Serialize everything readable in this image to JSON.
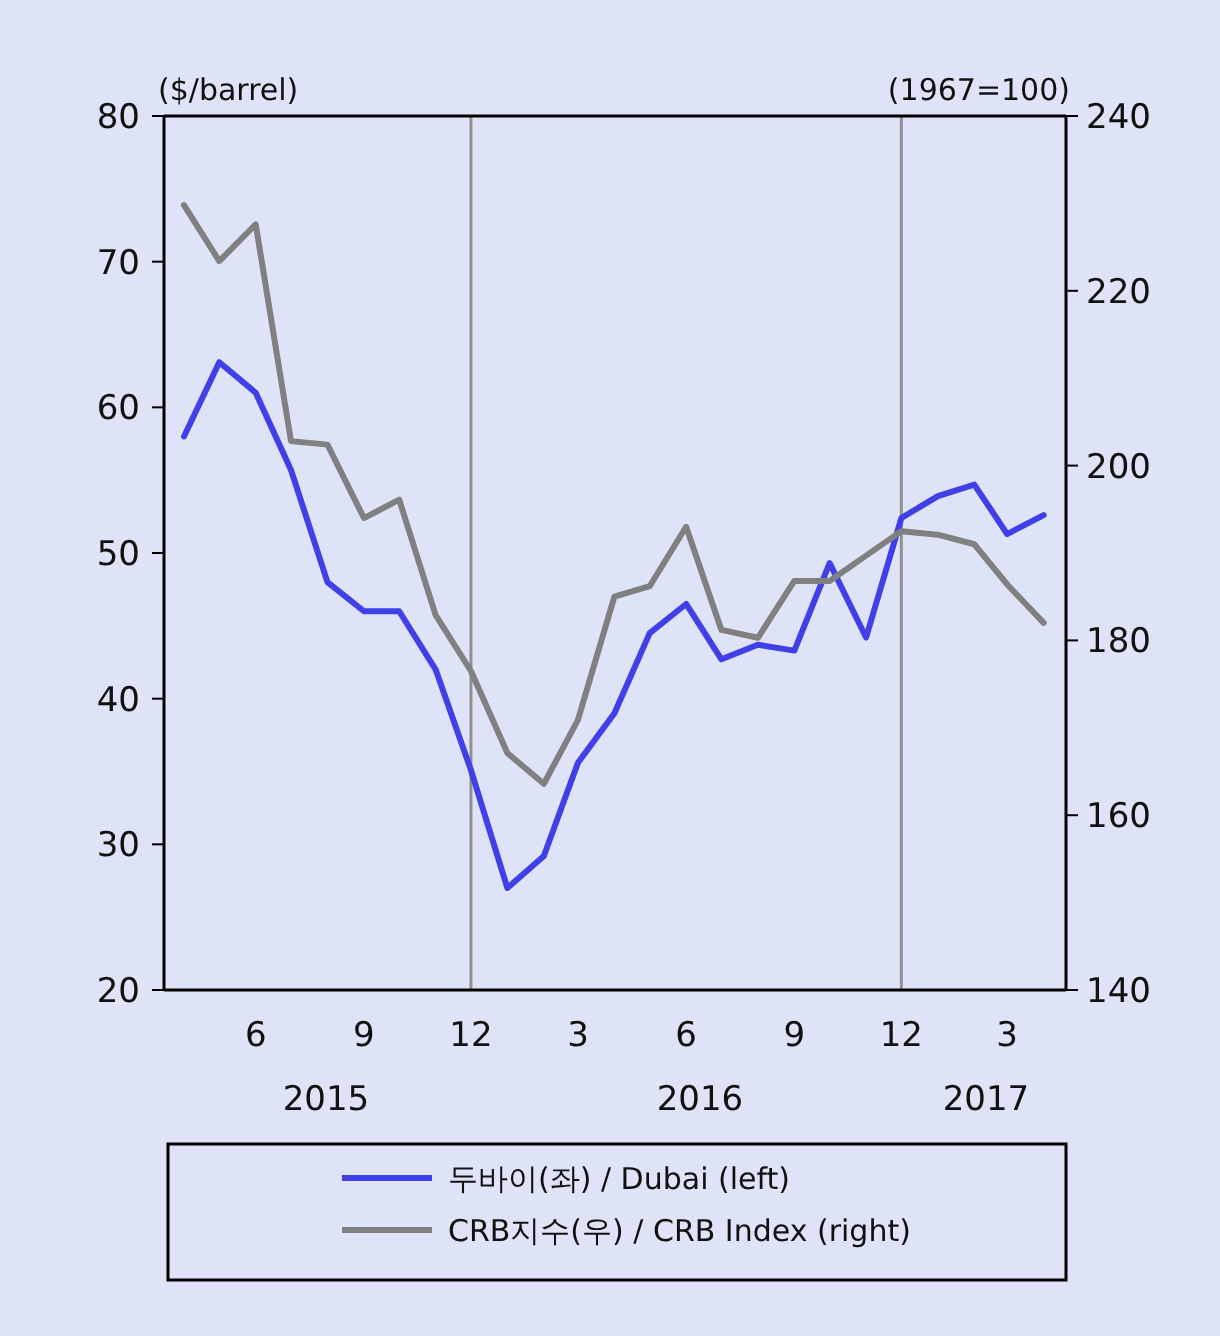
{
  "chart_data": {
    "type": "line",
    "ylabel": "($/barrel)",
    "y2label": "(1967=100)",
    "x": [
      "2015-04",
      "2015-05",
      "2015-06",
      "2015-07",
      "2015-08",
      "2015-09",
      "2015-10",
      "2015-11",
      "2015-12",
      "2016-01",
      "2016-02",
      "2016-03",
      "2016-04",
      "2016-05",
      "2016-06",
      "2016-07",
      "2016-08",
      "2016-09",
      "2016-10",
      "2016-11",
      "2016-12",
      "2017-01",
      "2017-02",
      "2017-03",
      "2017-04"
    ],
    "series": [
      {
        "name": "두바이(좌) / Dubai (left)",
        "color": "#4040e8",
        "values": [
          58.0,
          63.1,
          61.0,
          55.7,
          48.0,
          46.0,
          46.0,
          42.0,
          35.1,
          27.0,
          29.2,
          35.6,
          39.0,
          44.5,
          46.5,
          42.7,
          43.7,
          43.3,
          49.3,
          44.2,
          52.4,
          53.9,
          54.7,
          51.3,
          52.6
        ]
      },
      {
        "name": "CRB지수(우) / CRB Index (right)",
        "color": "#808080",
        "axis": "y2",
        "values": [
          229.8,
          223.4,
          227.6,
          202.8,
          202.4,
          194.0,
          196.1,
          182.9,
          176.5,
          167.1,
          163.6,
          170.9,
          185.0,
          186.2,
          193.0,
          181.2,
          180.3,
          186.8,
          186.8,
          189.7,
          192.5,
          192.1,
          191.0,
          186.4,
          182.0
        ]
      }
    ],
    "xlim": [
      "2015-03-15",
      "2017-04-20"
    ],
    "xticks": [
      {
        "value": "2015-06",
        "label": "6"
      },
      {
        "value": "2015-09",
        "label": "9"
      },
      {
        "value": "2015-12",
        "label": "12"
      },
      {
        "value": "2016-03",
        "label": "3"
      },
      {
        "value": "2016-06",
        "label": "6"
      },
      {
        "value": "2016-09",
        "label": "9"
      },
      {
        "value": "2016-12",
        "label": "12"
      },
      {
        "value": "2017-03",
        "label": "3"
      }
    ],
    "ylim": [
      20,
      80
    ],
    "yticks": [
      20,
      30,
      40,
      50,
      60,
      70,
      80
    ],
    "y2lim": [
      140,
      240
    ],
    "y2ticks": [
      140,
      160,
      180,
      200,
      220,
      240
    ],
    "ref_lines": [
      {
        "axis": "x",
        "value": "2015-12",
        "color": "#909090"
      },
      {
        "axis": "x",
        "value": "2016-12",
        "color": "#909090"
      }
    ],
    "annotations": [
      "2015",
      "2016",
      "2017"
    ],
    "legend": "bottom",
    "grid": false,
    "line_style": "solid",
    "marker": "none"
  }
}
